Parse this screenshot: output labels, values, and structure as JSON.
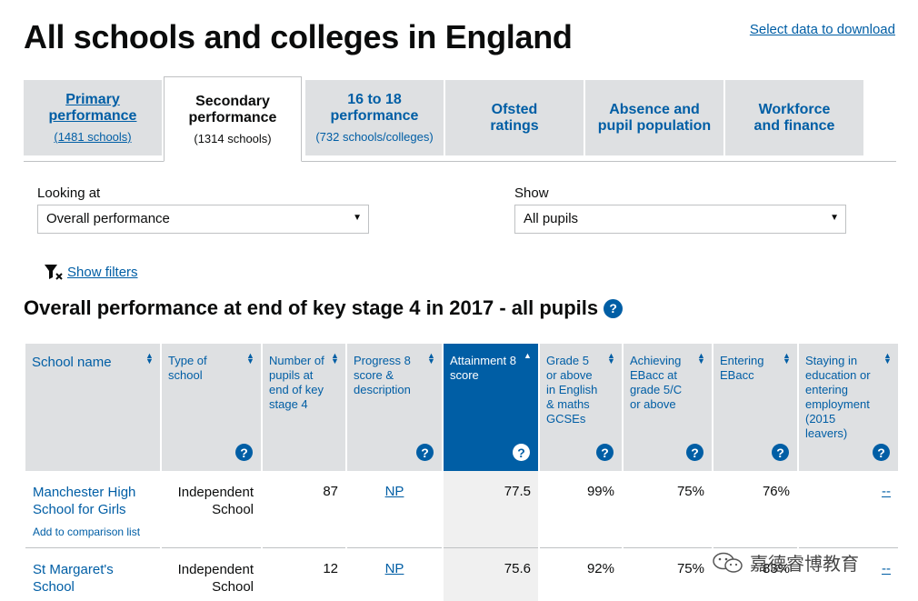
{
  "header": {
    "title": "All schools and colleges in England",
    "download_link": "Select data to download"
  },
  "tabs": [
    {
      "label": "Primary performance",
      "sub": "(1481 schools)"
    },
    {
      "label": "Secondary performance",
      "sub": "(1314 schools)"
    },
    {
      "label": "16 to 18 performance",
      "sub": "(732 schools/colleges)"
    },
    {
      "label": "Ofsted ratings",
      "sub": ""
    },
    {
      "label": "Absence and pupil population",
      "sub": ""
    },
    {
      "label": "Workforce and finance",
      "sub": ""
    }
  ],
  "filters": {
    "looking_at_label": "Looking at",
    "looking_at_value": "Overall performance",
    "show_label": "Show",
    "show_value": "All pupils",
    "show_filters_link": "Show filters"
  },
  "section": {
    "title": "Overall performance at end of key stage 4 in 2017 - all pupils",
    "help_glyph": "?"
  },
  "table": {
    "columns": [
      "School name",
      "Type of school",
      "Number of pupils at end of key stage 4",
      "Progress 8 score & description",
      "Attainment 8 score",
      "Grade 5 or above in English & maths GCSEs",
      "Achieving EBacc at grade 5/C or above",
      "Entering EBacc",
      "Staying in education or entering employment (2015 leavers)"
    ],
    "rows": [
      {
        "school": "Manchester High School for Girls",
        "compare": "Add to comparison list",
        "type": "Independent School",
        "pupils": "87",
        "progress8": "NP",
        "attainment8": "77.5",
        "grade5": "99%",
        "ebacc_achieve": "75%",
        "ebacc_enter": "76%",
        "staying": "--"
      },
      {
        "school": "St Margaret's School",
        "compare": "",
        "type": "Independent School",
        "pupils": "12",
        "progress8": "NP",
        "attainment8": "75.6",
        "grade5": "92%",
        "ebacc_achieve": "75%",
        "ebacc_enter": "83%",
        "staying": "--"
      }
    ]
  },
  "watermark": {
    "text": "嘉德睿博教育"
  },
  "colors": {
    "link": "#005ea5",
    "panel": "#dee0e2",
    "text": "#0b0c0c"
  }
}
